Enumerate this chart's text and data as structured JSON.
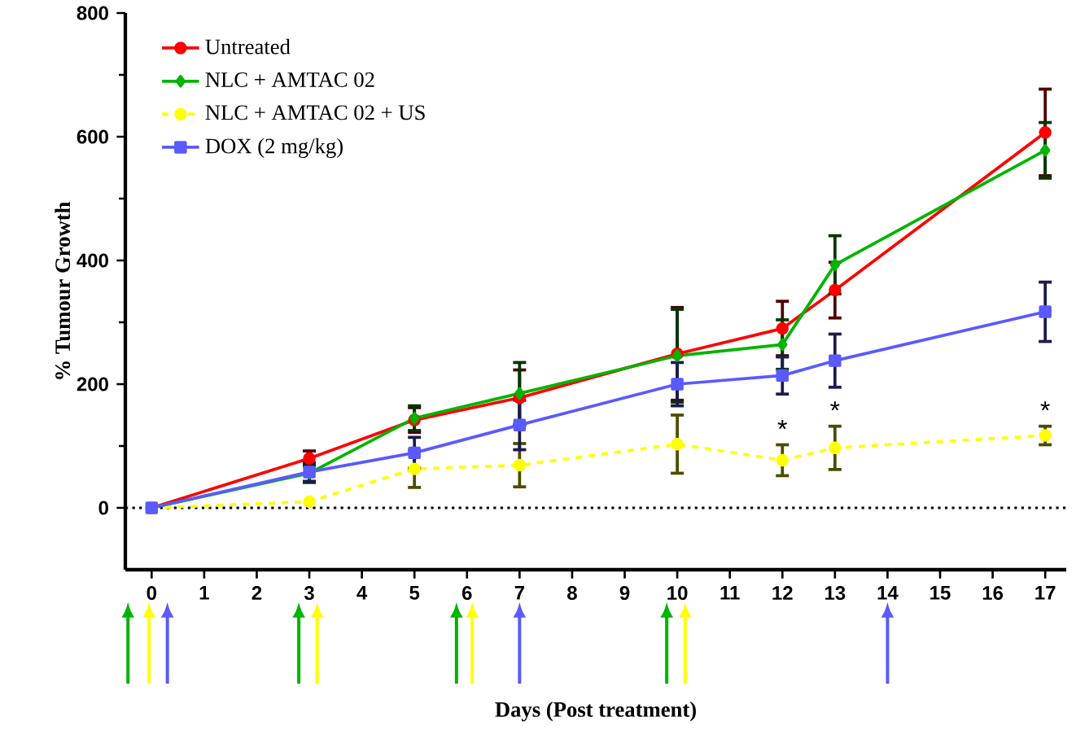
{
  "chart_data": {
    "type": "line",
    "xlabel": "Days (Post treatment)",
    "ylabel": "% Tumour Growth",
    "x": [
      0,
      3,
      5,
      7,
      10,
      12,
      13,
      17
    ],
    "xlim": [
      -0.5,
      17.4
    ],
    "xticks": [
      0,
      1,
      2,
      3,
      4,
      5,
      6,
      7,
      8,
      9,
      10,
      11,
      12,
      13,
      14,
      15,
      16,
      17
    ],
    "ylim": [
      -100,
      800
    ],
    "yticks": [
      0,
      200,
      400,
      600,
      800
    ],
    "legend": "top left",
    "grid": false,
    "series": [
      {
        "name": "Untreated",
        "color": "#ff0000",
        "marker": "circle",
        "line_style": "solid",
        "values": [
          0,
          80,
          142,
          178,
          249,
          290,
          352,
          607
        ],
        "errors": [
          null,
          12,
          20,
          45,
          75,
          44,
          45,
          70
        ]
      },
      {
        "name": "NLC + AMTAC 02",
        "color": "#00b400",
        "marker": "diamond",
        "line_style": "solid",
        "values": [
          0,
          56,
          145,
          185,
          246,
          264,
          393,
          578
        ],
        "errors": [
          null,
          15,
          20,
          50,
          75,
          40,
          47,
          45
        ]
      },
      {
        "name": "NLC + AMTAC 02 + US",
        "color": "#ffff00",
        "marker": "circle",
        "line_style": "dashed",
        "values": [
          0,
          10,
          63,
          69,
          103,
          77,
          97,
          117
        ],
        "errors": [
          null,
          null,
          30,
          35,
          47,
          25,
          35,
          15
        ]
      },
      {
        "name": "DOX (2 mg/kg)",
        "color": "#5a5aff",
        "marker": "square",
        "line_style": "solid",
        "values": [
          0,
          58,
          89,
          134,
          200,
          214,
          238,
          317
        ],
        "errors": [
          null,
          15,
          25,
          40,
          35,
          30,
          43,
          48
        ]
      }
    ],
    "ref_lines": [
      {
        "axis": "y",
        "value": 0,
        "color": "#000000",
        "line_style": "dotted"
      }
    ],
    "annotations": [
      {
        "text": "*",
        "x": 12,
        "y": 77
      },
      {
        "text": "*",
        "x": 13,
        "y": 97
      },
      {
        "text": "*",
        "x": 17,
        "y": 117
      }
    ]
  }
}
